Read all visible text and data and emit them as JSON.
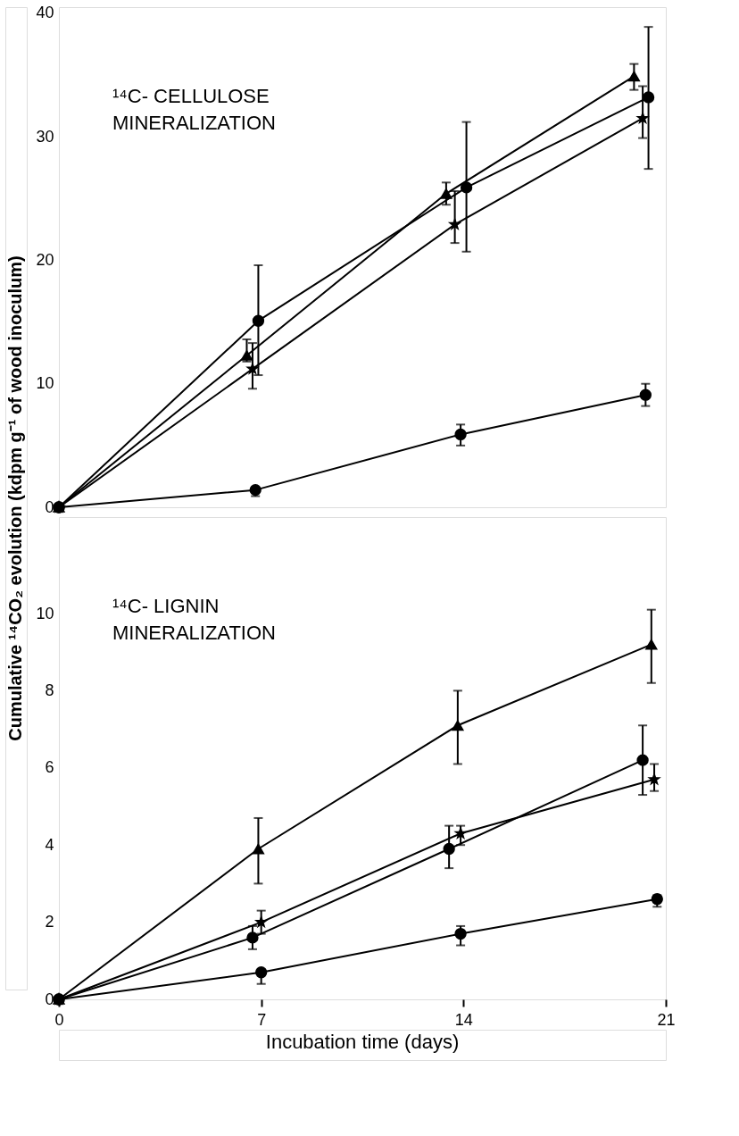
{
  "chart_data": [
    {
      "type": "line",
      "ylabel": "Cumulative ¹⁴CO₂ evolution (kdpm g⁻¹ of wood inoculum)",
      "annotations": [
        "¹⁴C- CELLULOSE\nMINERALIZATION"
      ],
      "xlim": [
        0,
        21
      ],
      "ylim": [
        0,
        40.5
      ],
      "yticks": [
        0,
        10,
        20,
        30,
        40
      ],
      "tick_labels": "y",
      "grid": false,
      "line_style": "solid",
      "series": [
        {
          "color": "#000000",
          "marker": "triangle",
          "x": [
            0,
            6.5,
            13.4,
            19.9
          ],
          "values": [
            0,
            12.3,
            25.4,
            34.9
          ],
          "errors": [
            null,
            [
              11.8,
              13.6
            ],
            [
              24.5,
              26.3
            ],
            [
              33.8,
              35.9
            ]
          ]
        },
        {
          "color": "#000000",
          "marker": "circle",
          "x": [
            0,
            6.9,
            14.1,
            20.4
          ],
          "values": [
            0,
            15.1,
            25.9,
            33.2
          ],
          "errors": [
            null,
            [
              10.7,
              19.6
            ],
            [
              20.7,
              31.2
            ],
            [
              27.4,
              38.9
            ]
          ]
        },
        {
          "color": "#000000",
          "marker": "circle",
          "x": [
            0,
            6.8,
            13.9,
            20.3
          ],
          "values": [
            0,
            1.4,
            5.9,
            9.1
          ],
          "errors": [
            null,
            [
              0.9,
              1.4
            ],
            [
              5.0,
              6.7
            ],
            [
              8.2,
              10.0
            ]
          ]
        },
        {
          "color": "#000000",
          "marker": "star",
          "x": [
            0,
            6.7,
            13.7,
            20.2
          ],
          "values": [
            0,
            11.2,
            22.9,
            31.5
          ],
          "errors": [
            null,
            [
              9.6,
              13.3
            ],
            [
              21.4,
              25.6
            ],
            [
              29.9,
              34.1
            ]
          ]
        }
      ]
    },
    {
      "type": "line",
      "xlabel": "Incubation time (days)",
      "annotations": [
        "¹⁴C- LIGNIN\nMINERALIZATION"
      ],
      "xlim": [
        0,
        21
      ],
      "xticks": [
        0,
        7,
        14,
        21
      ],
      "ylim": [
        0,
        12.5
      ],
      "yticks": [
        0,
        2,
        4,
        6,
        8,
        10
      ],
      "grid": false,
      "line_style": "solid",
      "series": [
        {
          "color": "#000000",
          "marker": "triangle",
          "x": [
            0,
            6.9,
            13.8,
            20.5
          ],
          "values": [
            0,
            3.9,
            7.1,
            9.2
          ],
          "errors": [
            null,
            [
              3.0,
              4.7
            ],
            [
              6.1,
              8.0
            ],
            [
              8.2,
              10.1
            ]
          ]
        },
        {
          "color": "#000000",
          "marker": "circle",
          "x": [
            0,
            6.7,
            13.5,
            20.2
          ],
          "values": [
            0,
            1.6,
            3.9,
            6.2
          ],
          "errors": [
            null,
            [
              1.3,
              1.9
            ],
            [
              3.4,
              4.5
            ],
            [
              5.3,
              7.1
            ]
          ]
        },
        {
          "color": "#000000",
          "marker": "circle",
          "x": [
            0,
            7.0,
            13.9,
            20.7
          ],
          "values": [
            0,
            0.7,
            1.7,
            2.6
          ],
          "errors": [
            null,
            [
              0.4,
              0.7
            ],
            [
              1.4,
              1.9
            ],
            [
              2.4,
              2.7
            ]
          ]
        },
        {
          "color": "#000000",
          "marker": "star",
          "x": [
            0,
            7.0,
            13.9,
            20.6
          ],
          "values": [
            0,
            2.0,
            4.3,
            5.7
          ],
          "errors": [
            null,
            [
              1.7,
              2.3
            ],
            [
              4.0,
              4.5
            ],
            [
              5.4,
              6.1
            ]
          ]
        }
      ]
    }
  ]
}
